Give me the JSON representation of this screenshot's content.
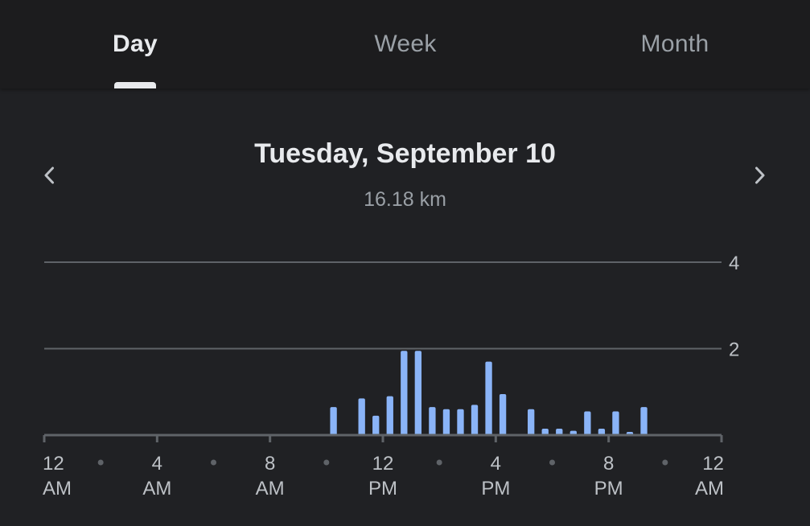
{
  "tabs": [
    {
      "label": "Day",
      "active": true
    },
    {
      "label": "Week",
      "active": false
    },
    {
      "label": "Month",
      "active": false
    }
  ],
  "header": {
    "date": "Tuesday, September 10",
    "distance": "16.18 km",
    "prev_icon": "chevron-left-icon",
    "next_icon": "chevron-right-icon"
  },
  "colors": {
    "background": "#202124",
    "bar": "#8ab4f8",
    "grid": "#5f6368",
    "text": "#e8eaed"
  },
  "chart_data": {
    "type": "bar",
    "ylim": [
      0,
      4
    ],
    "yticks": [
      2,
      4
    ],
    "xlim": [
      0,
      24
    ],
    "xticks": [
      {
        "hour": 0,
        "line1": "12",
        "line2": "AM"
      },
      {
        "hour": 4,
        "line1": "4",
        "line2": "AM"
      },
      {
        "hour": 8,
        "line1": "8",
        "line2": "AM"
      },
      {
        "hour": 12,
        "line1": "12",
        "line2": "PM"
      },
      {
        "hour": 16,
        "line1": "4",
        "line2": "PM"
      },
      {
        "hour": 20,
        "line1": "8",
        "line2": "PM"
      },
      {
        "hour": 24,
        "line1": "12",
        "line2": "AM"
      }
    ],
    "minor_ticks": [
      2,
      6,
      10,
      14,
      18,
      22
    ],
    "bar_width_hours": 0.25,
    "x": [
      10.25,
      11.25,
      11.75,
      12.25,
      12.75,
      13.25,
      13.75,
      14.25,
      14.75,
      15.25,
      15.75,
      16.25,
      17.25,
      17.75,
      18.25,
      18.75,
      19.25,
      19.75,
      20.25,
      20.75,
      21.25
    ],
    "values": [
      0.65,
      0.85,
      0.45,
      0.9,
      1.95,
      1.95,
      0.65,
      0.6,
      0.6,
      0.7,
      1.7,
      0.95,
      0.6,
      0.15,
      0.15,
      0.1,
      0.55,
      0.15,
      0.55,
      0.05,
      0.65
    ]
  }
}
